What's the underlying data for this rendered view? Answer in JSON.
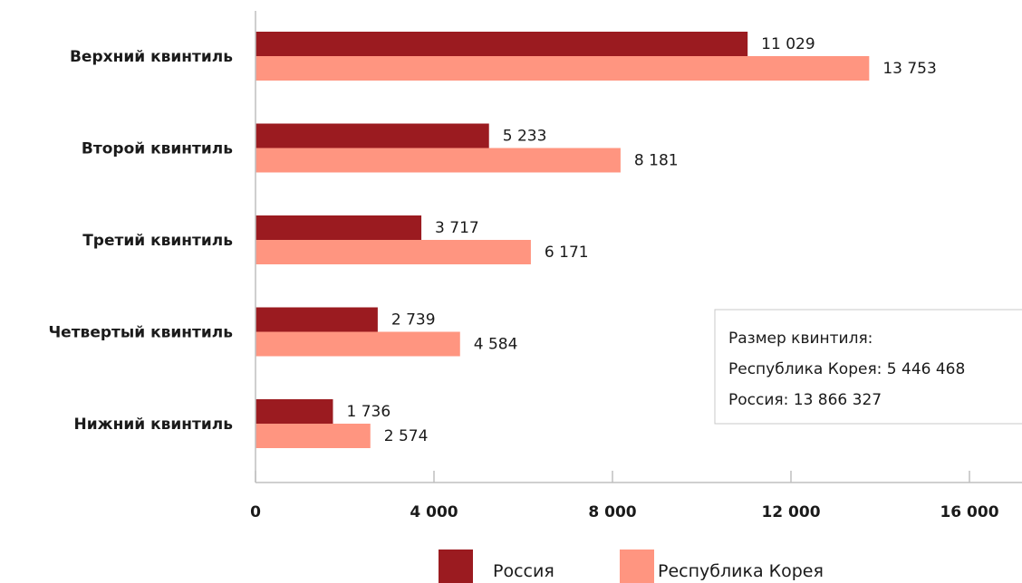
{
  "chart_data": {
    "type": "bar",
    "orientation": "horizontal",
    "categories": [
      "Верхний квинтиль",
      "Второй квинтиль",
      "Третий квинтиль",
      "Четвертый квинтиль",
      "Нижний квинтиль"
    ],
    "series": [
      {
        "name": "Россия",
        "color": "#9b1b20",
        "values": [
          11029,
          5233,
          3717,
          2739,
          1736
        ],
        "labels": [
          "11 029",
          "5 233",
          "3 717",
          "2 739",
          "1 736"
        ]
      },
      {
        "name": "Республика Корея",
        "color": "#ff9580",
        "values": [
          13753,
          8181,
          6171,
          4584,
          2574
        ],
        "labels": [
          "13 753",
          "8 181",
          "6 171",
          "4 584",
          "2 574"
        ]
      }
    ],
    "xlim": [
      0,
      16000
    ],
    "xticks": [
      0,
      4000,
      8000,
      12000,
      16000
    ],
    "xtick_labels": [
      "0",
      "4 000",
      "8 000",
      "12 000",
      "16 000"
    ],
    "title": "",
    "xlabel": "",
    "ylabel": "",
    "legend_position": "bottom",
    "grid": false
  },
  "annotation": {
    "lines": [
      "Размер квинтиля:",
      "Республика Корея: 5 446 468",
      "Россия: 13 866 327"
    ]
  }
}
